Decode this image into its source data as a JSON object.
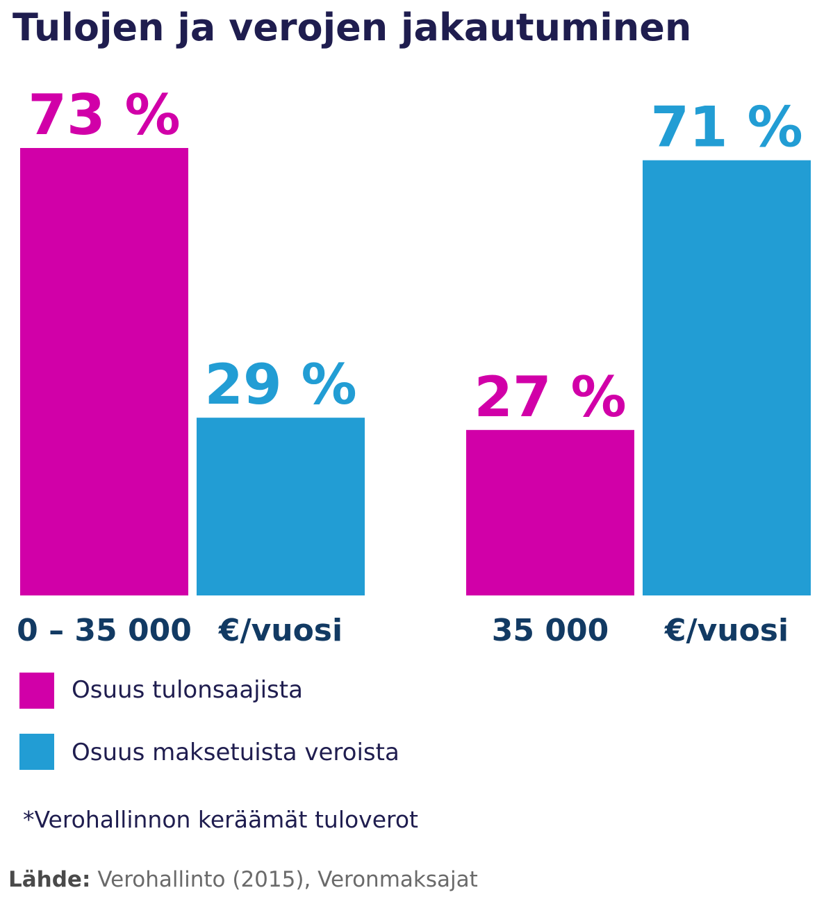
{
  "title": "Tulojen ja verojen jakautuminen",
  "colors": {
    "magenta": "#d100a8",
    "blue": "#229dd4",
    "title": "#1f1d4f",
    "group_label": "#123a63"
  },
  "chart_data": {
    "type": "bar",
    "title": "Tulojen ja verojen jakautuminen",
    "categories": [
      "0 – 35 000 €/vuosi",
      "35 000 €/vuosi"
    ],
    "category_label_parts": [
      [
        "0 – 35 000",
        "€/vuosi"
      ],
      [
        "35 000",
        "€/vuosi"
      ]
    ],
    "series": [
      {
        "name": "Osuus tulonsaajista",
        "color": "#d100a8",
        "values": [
          73,
          27
        ],
        "labels": [
          "73 %",
          "27 %"
        ]
      },
      {
        "name": "Osuus maksetuista veroista",
        "color": "#229dd4",
        "values": [
          29,
          71
        ],
        "labels": [
          "29 %",
          "71 %"
        ]
      }
    ],
    "unit": "%",
    "ylim": [
      0,
      73
    ],
    "grid": false,
    "legend_position": "bottom-left"
  },
  "legend": [
    {
      "label": "Osuus tulonsaajista",
      "color": "#d100a8"
    },
    {
      "label": "Osuus maksetuista veroista",
      "color": "#229dd4"
    }
  ],
  "footnote": "*Verohallinnon keräämät tuloverot",
  "source": {
    "label": "Lähde:",
    "text": "Verohallinto (2015), Veronmaksajat"
  }
}
